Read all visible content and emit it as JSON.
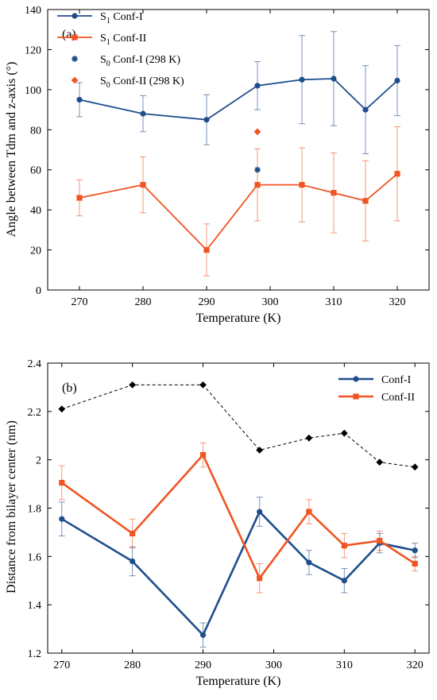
{
  "chart_data": [
    {
      "type": "line",
      "panel_label": "(a)",
      "xlabel": "Temperature (K)",
      "ylabel": "Angle between Tdm and z-axis (°)",
      "xlim": [
        265,
        325
      ],
      "ylim": [
        0,
        140
      ],
      "xticks": [
        270,
        280,
        290,
        300,
        310,
        320
      ],
      "yticks": [
        0,
        20,
        40,
        60,
        80,
        100,
        120,
        140
      ],
      "legend_position": "top-left",
      "series": [
        {
          "name": "S1 Conf-I",
          "name_base": "S",
          "name_sub": "1",
          "name_rest": " Conf-I",
          "color": "#1f4e8c",
          "marker": "circle",
          "x": [
            270,
            280,
            290,
            298,
            305,
            310,
            315,
            320
          ],
          "y": [
            95,
            88,
            85,
            102,
            105,
            105.5,
            90,
            104.5
          ],
          "err": [
            8.5,
            9,
            12.5,
            12,
            22,
            23.5,
            22,
            17.5
          ]
        },
        {
          "name": "S1 Conf-II",
          "name_base": "S",
          "name_sub": "1",
          "name_rest": " Conf-II",
          "color": "#f05423",
          "marker": "square",
          "x": [
            270,
            280,
            290,
            298,
            305,
            310,
            315,
            320
          ],
          "y": [
            46,
            52.5,
            20,
            52.5,
            52.5,
            48.5,
            44.5,
            58
          ],
          "err": [
            9,
            14,
            13,
            18,
            18.5,
            20,
            20,
            23.5
          ]
        },
        {
          "name": "S0 Conf-I (298 K)",
          "name_base": "S",
          "name_sub": "0",
          "name_rest": " Conf-I (298 K)",
          "color": "#1f4e8c",
          "marker": "star",
          "x": [
            298
          ],
          "y": [
            60
          ]
        },
        {
          "name": "S0 Conf-II (298 K)",
          "name_base": "S",
          "name_sub": "0",
          "name_rest": " Conf-II (298 K)",
          "color": "#f05423",
          "marker": "diamond",
          "x": [
            298
          ],
          "y": [
            79
          ]
        }
      ]
    },
    {
      "type": "line",
      "panel_label": "(b)",
      "xlabel": "Temperature (K)",
      "ylabel": "Distance from bilayer center (nm)",
      "xlim": [
        268,
        322
      ],
      "ylim": [
        1.2,
        2.4
      ],
      "xticks": [
        270,
        280,
        290,
        300,
        310,
        320
      ],
      "yticks": [
        1.2,
        1.4,
        1.6,
        1.8,
        2.0,
        2.2,
        2.4
      ],
      "ytick_labels": [
        "1.2",
        "1.4",
        "1.6",
        "1.8",
        "2",
        "2.2",
        "2.4"
      ],
      "legend_position": "top-right",
      "series": [
        {
          "name": "Conf-I",
          "color": "#1f4e8c",
          "marker": "circle",
          "x": [
            270,
            280,
            290,
            298,
            305,
            310,
            315,
            320
          ],
          "y": [
            1.755,
            1.58,
            1.275,
            1.785,
            1.575,
            1.5,
            1.655,
            1.625
          ],
          "err": [
            0.07,
            0.06,
            0.05,
            0.06,
            0.05,
            0.05,
            0.04,
            0.03
          ]
        },
        {
          "name": "Conf-II",
          "color": "#f05423",
          "marker": "square",
          "x": [
            270,
            280,
            290,
            298,
            305,
            310,
            315,
            320
          ],
          "y": [
            1.905,
            1.695,
            2.02,
            1.51,
            1.785,
            1.645,
            1.665,
            1.57
          ],
          "err": [
            0.07,
            0.06,
            0.05,
            0.06,
            0.05,
            0.05,
            0.04,
            0.03
          ]
        },
        {
          "name": "",
          "color": "#000000",
          "marker": "diamond",
          "dashed": true,
          "x": [
            270,
            280,
            290,
            298,
            305,
            310,
            315,
            320
          ],
          "y": [
            2.21,
            2.31,
            2.31,
            2.04,
            2.09,
            2.11,
            1.99,
            1.97
          ]
        }
      ]
    }
  ]
}
